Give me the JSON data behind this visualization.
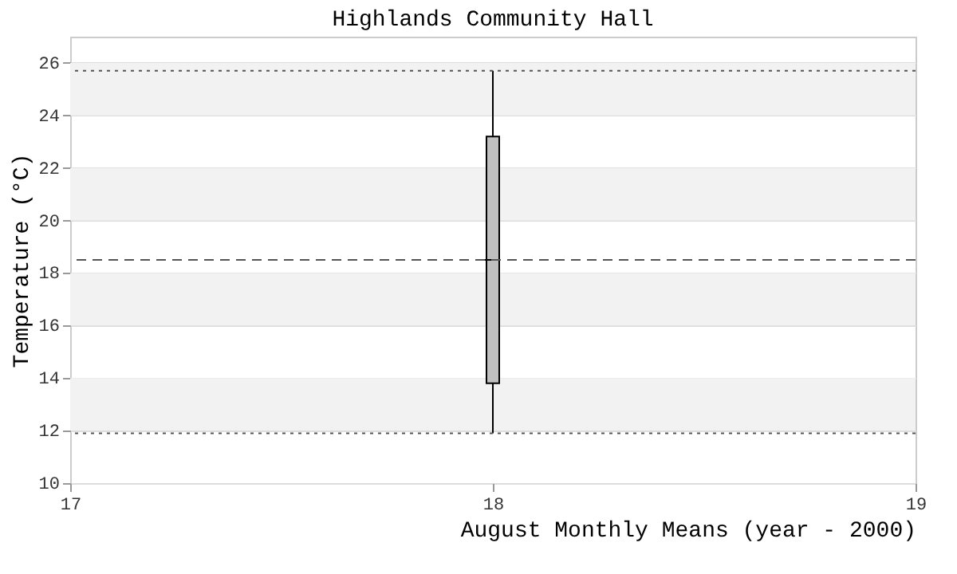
{
  "chart_data": {
    "type": "box",
    "title": "Highlands Community Hall",
    "xlabel": "August Monthly Means (year - 2000)",
    "ylabel": "Temperature (°C)",
    "x": [
      18
    ],
    "series": [
      {
        "color": "#c0c0c0",
        "boxes": [
          {
            "low": 11.9,
            "q1": 13.8,
            "median": 18.5,
            "q3": 23.2,
            "high": 25.7
          }
        ]
      }
    ],
    "xlim": [
      17,
      19
    ],
    "xticks": [
      17,
      18,
      19
    ],
    "ylim": [
      10,
      27
    ],
    "yticks": [
      10,
      12,
      14,
      16,
      18,
      20,
      22,
      24,
      26
    ],
    "grid": "y",
    "bands": [
      {
        "axis": "y",
        "from": 12,
        "to": 14,
        "color": "#f2f2f2"
      },
      {
        "axis": "y",
        "from": 16,
        "to": 18,
        "color": "#f2f2f2"
      },
      {
        "axis": "y",
        "from": 20,
        "to": 22,
        "color": "#f2f2f2"
      },
      {
        "axis": "y",
        "from": 24,
        "to": 26,
        "color": "#f2f2f2"
      }
    ],
    "ref_lines": [
      {
        "axis": "y",
        "value": 25.7,
        "line_style": "dotted",
        "color": "#555555"
      },
      {
        "axis": "y",
        "value": 18.5,
        "line_style": "dashed",
        "color": "#555555"
      },
      {
        "axis": "y",
        "value": 11.9,
        "line_style": "dotted",
        "color": "#555555"
      }
    ]
  }
}
